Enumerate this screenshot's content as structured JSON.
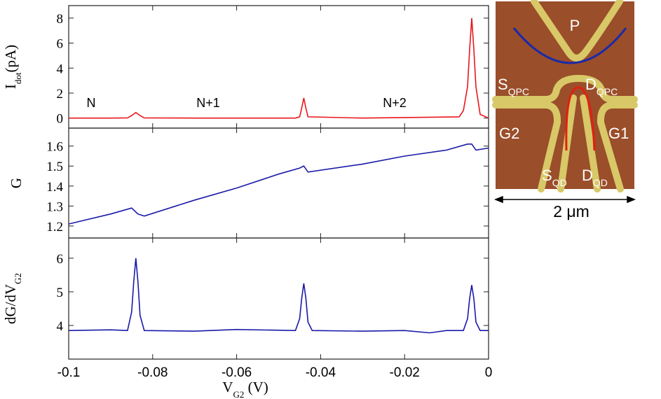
{
  "chart_data": [
    {
      "type": "line",
      "color": "#e8171c",
      "ylabel": {
        "main": "I",
        "sub": "dot",
        "unit": "(pA)"
      },
      "annotations": [
        "N",
        "N+1",
        "N+2"
      ],
      "x": [
        -0.1,
        -0.09,
        -0.086,
        -0.085,
        -0.084,
        -0.083,
        -0.082,
        -0.07,
        -0.046,
        -0.045,
        -0.0445,
        -0.044,
        -0.0435,
        -0.043,
        -0.03,
        -0.007,
        -0.006,
        -0.005,
        -0.0045,
        -0.004,
        -0.0035,
        -0.003,
        -0.002,
        0
      ],
      "values": [
        0,
        0,
        0.02,
        0.2,
        0.45,
        0.2,
        0.02,
        0,
        0,
        0.1,
        0.8,
        1.6,
        0.8,
        0.1,
        0,
        0.1,
        0.6,
        2.5,
        5.5,
        8,
        5.5,
        2.5,
        0.3,
        0
      ],
      "xlim": [
        -0.1,
        0
      ],
      "ylim": [
        -0.8,
        9
      ],
      "yticks": [
        0,
        2,
        4,
        6,
        8
      ]
    },
    {
      "type": "line",
      "color": "#1a1aa8",
      "ylabel": {
        "main": "G"
      },
      "x": [
        -0.1,
        -0.09,
        -0.085,
        -0.0835,
        -0.082,
        -0.07,
        -0.06,
        -0.05,
        -0.045,
        -0.044,
        -0.043,
        -0.03,
        -0.02,
        -0.01,
        -0.005,
        -0.004,
        -0.003,
        0
      ],
      "values": [
        1.21,
        1.26,
        1.29,
        1.26,
        1.25,
        1.33,
        1.39,
        1.46,
        1.49,
        1.5,
        1.47,
        1.51,
        1.55,
        1.58,
        1.61,
        1.61,
        1.58,
        1.59
      ],
      "xlim": [
        -0.1,
        0
      ],
      "ylim": [
        1.14,
        1.69
      ],
      "yticks": [
        1.2,
        1.3,
        1.4,
        1.5,
        1.6
      ]
    },
    {
      "type": "line",
      "color": "#1a1aa8",
      "ylabel": {
        "main": "dG/dV",
        "sub": "G2"
      },
      "xlabel": {
        "main": "V",
        "sub": "G2",
        "unit": " (V)"
      },
      "x": [
        -0.1,
        -0.09,
        -0.086,
        -0.085,
        -0.0845,
        -0.084,
        -0.0835,
        -0.083,
        -0.082,
        -0.07,
        -0.06,
        -0.046,
        -0.045,
        -0.0445,
        -0.044,
        -0.0435,
        -0.043,
        -0.042,
        -0.03,
        -0.02,
        -0.014,
        -0.01,
        -0.006,
        -0.005,
        -0.0045,
        -0.004,
        -0.0035,
        -0.003,
        -0.002,
        0
      ],
      "values": [
        3.85,
        3.87,
        3.85,
        4.4,
        5.3,
        6.0,
        5.3,
        4.3,
        3.85,
        3.83,
        3.88,
        3.85,
        4.2,
        4.8,
        5.25,
        4.8,
        4.1,
        3.85,
        3.83,
        3.85,
        3.78,
        3.85,
        3.85,
        4.2,
        4.8,
        5.2,
        4.8,
        4.1,
        3.85,
        3.85
      ],
      "xlim": [
        -0.1,
        0
      ],
      "xticks": [
        -0.1,
        -0.08,
        -0.06,
        -0.04,
        -0.02,
        0
      ],
      "ylim": [
        3,
        6.6
      ],
      "yticks": [
        4,
        5,
        6
      ]
    }
  ],
  "inset": {
    "labels": [
      {
        "main": "P"
      },
      {
        "main": "S",
        "sub": "QPC"
      },
      {
        "main": "D",
        "sub": "QPC"
      },
      {
        "main": "G2"
      },
      {
        "main": "G1"
      },
      {
        "main": "S",
        "sub": "QD"
      },
      {
        "main": "D",
        "sub": "QD"
      }
    ],
    "scale_bar": "2 μm"
  }
}
